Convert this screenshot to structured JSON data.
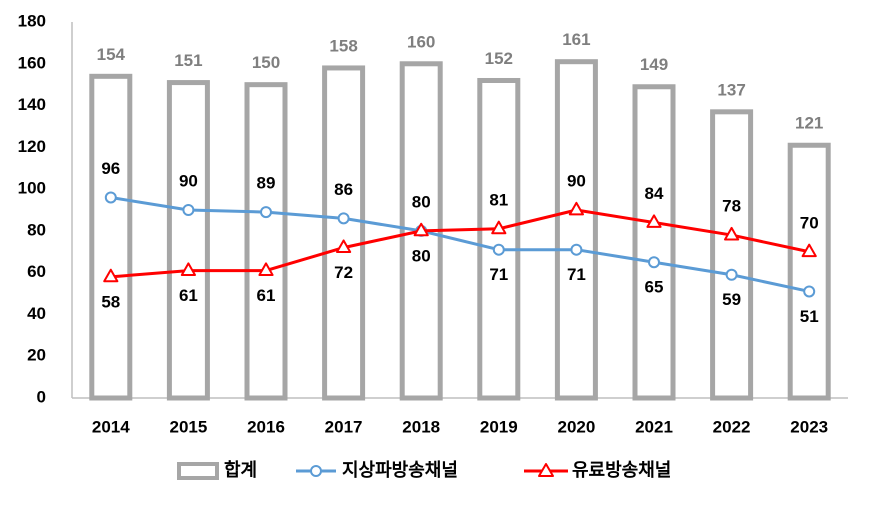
{
  "chart_data": {
    "type": "bar",
    "categories": [
      "2014",
      "2015",
      "2016",
      "2017",
      "2018",
      "2019",
      "2020",
      "2021",
      "2022",
      "2023"
    ],
    "series": [
      {
        "name": "합계",
        "kind": "bar",
        "color": "#a6a6a6",
        "values": [
          154,
          151,
          150,
          158,
          160,
          152,
          161,
          149,
          137,
          121
        ]
      },
      {
        "name": "지상파방송채널",
        "kind": "line",
        "marker": "circle",
        "color": "#5b9bd5",
        "values": [
          96,
          90,
          89,
          86,
          80,
          71,
          71,
          65,
          59,
          51
        ]
      },
      {
        "name": "유료방송채널",
        "kind": "line",
        "marker": "triangle",
        "color": "#ff0000",
        "values": [
          58,
          61,
          61,
          72,
          80,
          81,
          90,
          84,
          78,
          70
        ]
      }
    ],
    "ylim": [
      0,
      180
    ],
    "yticks": [
      0,
      20,
      40,
      60,
      80,
      100,
      120,
      140,
      160,
      180
    ],
    "grid": false,
    "legend": "bottom"
  }
}
